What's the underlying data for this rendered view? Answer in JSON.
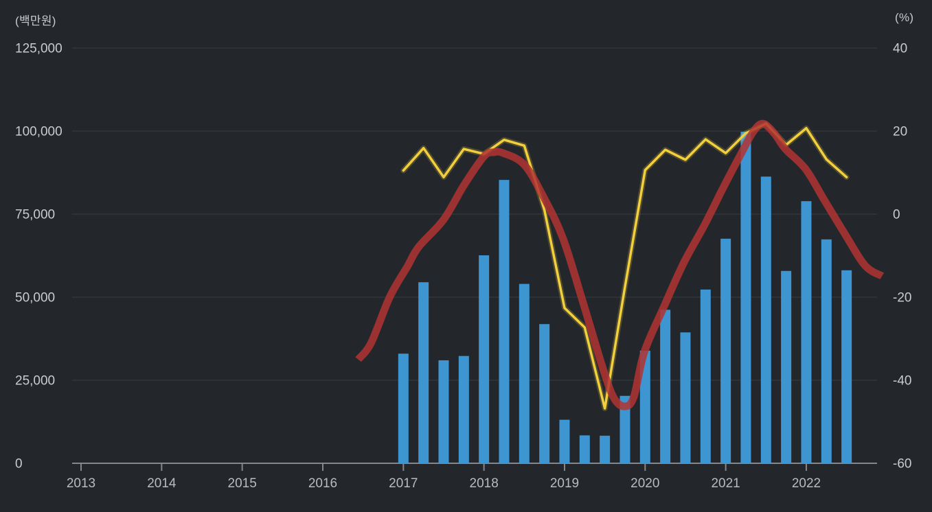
{
  "axes": {
    "left_unit": "(백만원)",
    "right_unit": "(%)",
    "left_tick_labels": [
      "125,000",
      "100,000",
      "75,000",
      "50,000",
      "25,000",
      "0"
    ],
    "left_tick_values": [
      125000,
      100000,
      75000,
      50000,
      25000,
      0
    ],
    "left_range": [
      0,
      125000
    ],
    "right_tick_labels": [
      "40",
      "20",
      "0",
      "-20",
      "-40",
      "-60"
    ],
    "right_tick_values": [
      40,
      20,
      0,
      -20,
      -40,
      -60
    ],
    "right_range": [
      -60,
      40
    ],
    "x_tick_labels": [
      "2013",
      "2014",
      "2015",
      "2016",
      "2017",
      "2018",
      "2019",
      "2020",
      "2021",
      "2022"
    ],
    "x_tick_years": [
      2013,
      2014,
      2015,
      2016,
      2017,
      2018,
      2019,
      2020,
      2021,
      2022
    ],
    "grid": true,
    "legend": "none"
  },
  "chart_data": {
    "type": "bar+line",
    "categories": [
      "2017 Q1",
      "2017 Q2",
      "2017 Q3",
      "2017 Q4",
      "2018 Q1",
      "2018 Q2",
      "2018 Q3",
      "2018 Q4",
      "2019 Q1",
      "2019 Q2",
      "2019 Q3",
      "2019 Q4",
      "2020 Q1",
      "2020 Q2",
      "2020 Q3",
      "2020 Q4",
      "2021 Q1",
      "2021 Q2",
      "2021 Q3",
      "2021 Q4",
      "2022 Q1",
      "2022 Q2",
      "2022 Q3"
    ],
    "series": [
      {
        "name": "bars-amount",
        "type": "bar",
        "axis": "left",
        "unit": "백만원",
        "values": [
          33000,
          54500,
          31000,
          32300,
          62600,
          85300,
          54000,
          41900,
          13100,
          8400,
          8300,
          20300,
          33900,
          46200,
          39400,
          52300,
          67600,
          99800,
          86300,
          57900,
          78900,
          67400,
          58100
        ]
      },
      {
        "name": "line-yellow-rate",
        "type": "line",
        "axis": "right",
        "unit": "%",
        "values": [
          10.5,
          15.9,
          8.9,
          15.7,
          14.5,
          17.9,
          16.5,
          1.0,
          -22.6,
          -27.3,
          -46.8,
          -17.5,
          10.6,
          15.5,
          13.1,
          18.0,
          14.7,
          19.5,
          21.8,
          16.7,
          20.7,
          13.2,
          8.9
        ]
      },
      {
        "name": "line-red-trend",
        "type": "smooth-line",
        "axis": "right",
        "unit": "%",
        "points": [
          [
            2016.44,
            -35.0
          ],
          [
            2016.6,
            -31.0
          ],
          [
            2016.83,
            -20.0
          ],
          [
            2017.05,
            -12.6
          ],
          [
            2017.19,
            -7.9
          ],
          [
            2017.5,
            -1.3
          ],
          [
            2017.75,
            6.9
          ],
          [
            2018.0,
            13.9
          ],
          [
            2018.12,
            14.9
          ],
          [
            2018.24,
            14.7
          ],
          [
            2018.5,
            11.9
          ],
          [
            2018.74,
            4.1
          ],
          [
            2018.98,
            -5.8
          ],
          [
            2019.23,
            -21.3
          ],
          [
            2019.49,
            -38.0
          ],
          [
            2019.62,
            -44.5
          ],
          [
            2019.75,
            -46.3
          ],
          [
            2019.86,
            -44.0
          ],
          [
            2019.99,
            -33.2
          ],
          [
            2020.24,
            -22.0
          ],
          [
            2020.48,
            -11.7
          ],
          [
            2020.74,
            -2.5
          ],
          [
            2020.97,
            6.4
          ],
          [
            2021.2,
            14.9
          ],
          [
            2021.34,
            19.8
          ],
          [
            2021.46,
            21.8
          ],
          [
            2021.6,
            19.5
          ],
          [
            2021.74,
            15.7
          ],
          [
            2021.99,
            10.9
          ],
          [
            2022.22,
            3.5
          ],
          [
            2022.48,
            -4.8
          ],
          [
            2022.73,
            -12.4
          ],
          [
            2022.94,
            -14.9
          ]
        ]
      }
    ],
    "title": "",
    "xlabel": "",
    "ylabel_left": "백만원",
    "ylabel_right": "%",
    "x_domain_years": [
      2013,
      2023
    ],
    "bar_start_year": 2017.0,
    "bar_step_years": 0.25
  },
  "colors": {
    "background": "#23272c",
    "bar": "#3d96d2",
    "line_yellow": "#f2cf3c",
    "line_red": "#b23432",
    "gridline": "#383c41",
    "axis_line": "#85888b",
    "tick_label": "#c9cbcd",
    "year_label": "#b9bbbd"
  }
}
